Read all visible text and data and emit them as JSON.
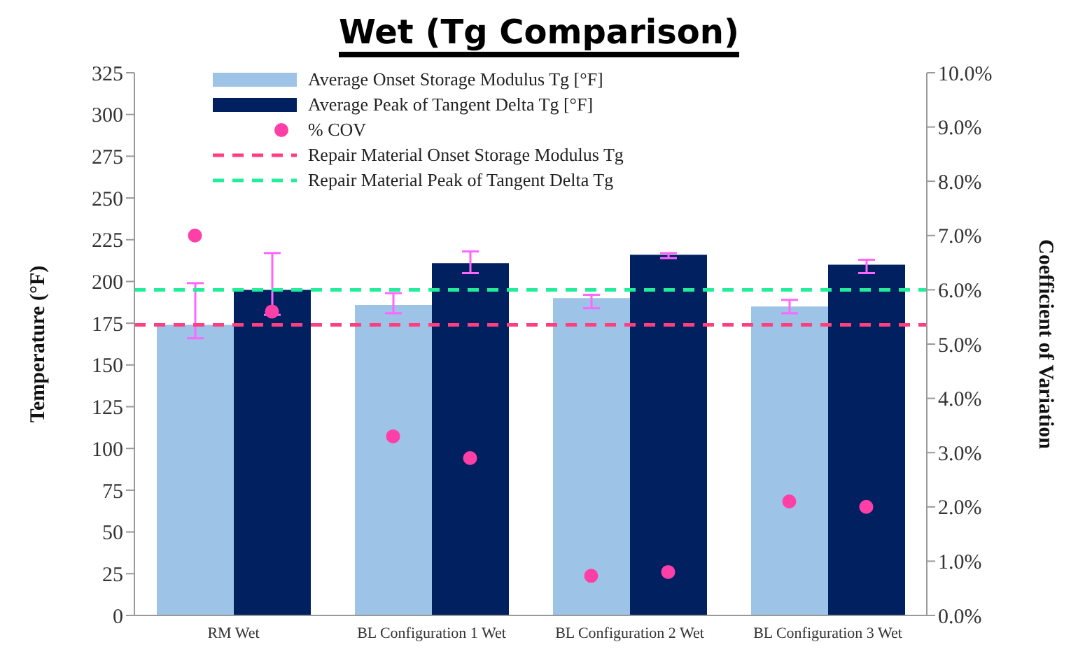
{
  "chart_data": {
    "type": "bar",
    "title": "Wet (Tg Comparison)",
    "ylabel": "Temperature (°F)",
    "y2label": "Coefficient of Variation",
    "categories": [
      "RM Wet",
      "BL Configuration 1 Wet",
      "BL Configuration 2 Wet",
      "BL Configuration 3 Wet"
    ],
    "series": [
      {
        "name": "Average Onset Storage Modulus Tg [°F]",
        "color": "#9dc3e6",
        "values": [
          174,
          186,
          190,
          185
        ],
        "errors": [
          [
            166,
            199
          ],
          [
            181,
            193
          ],
          [
            184,
            192
          ],
          [
            181,
            189
          ]
        ]
      },
      {
        "name": "Average Peak of Tangent Delta Tg [°F]",
        "color": "#002060",
        "values": [
          195,
          211,
          216,
          210
        ],
        "errors": [
          [
            180,
            217
          ],
          [
            205,
            218
          ],
          [
            214,
            217
          ],
          [
            205,
            213
          ]
        ]
      },
      {
        "name": "% COV",
        "type": "scatter",
        "axis": "y2",
        "color": "#ff3fa8",
        "x": [
          "RM Wet",
          "RM Wet",
          "BL Configuration 1 Wet",
          "BL Configuration 1 Wet",
          "BL Configuration 2 Wet",
          "BL Configuration 2 Wet",
          "BL Configuration 3 Wet",
          "BL Configuration 3 Wet"
        ],
        "values": [
          7.0,
          5.6,
          3.3,
          2.9,
          0.73,
          0.8,
          2.1,
          2.0
        ]
      }
    ],
    "ref_lines": [
      {
        "axis": "y",
        "value": 174,
        "label": "Repair Material Onset Storage Modulus Tg",
        "color": "#ff3f7f",
        "line_style": "dashed"
      },
      {
        "axis": "y",
        "value": 195,
        "label": "Repair Material Peak of Tangent Delta Tg",
        "color": "#22ee99",
        "line_style": "dashed"
      }
    ],
    "ylim": [
      0,
      325
    ],
    "yticks": [
      0,
      25,
      50,
      75,
      100,
      125,
      150,
      175,
      200,
      225,
      250,
      275,
      300,
      325
    ],
    "y2lim": [
      0,
      10
    ],
    "y2ticks": [
      {
        "value": 0,
        "label": "0.0%"
      },
      {
        "value": 1,
        "label": "1.0%"
      },
      {
        "value": 2,
        "label": "2.0%"
      },
      {
        "value": 3,
        "label": "3.0%"
      },
      {
        "value": 4,
        "label": "4.0%"
      },
      {
        "value": 5,
        "label": "5.0%"
      },
      {
        "value": 6,
        "label": "6.0%"
      },
      {
        "value": 7,
        "label": "7.0%"
      },
      {
        "value": 8,
        "label": "8.0%"
      },
      {
        "value": 9,
        "label": "9.0%"
      },
      {
        "value": 10,
        "label": "10.0%"
      }
    ],
    "grid": false,
    "legend": "top left",
    "marker": "circle"
  }
}
